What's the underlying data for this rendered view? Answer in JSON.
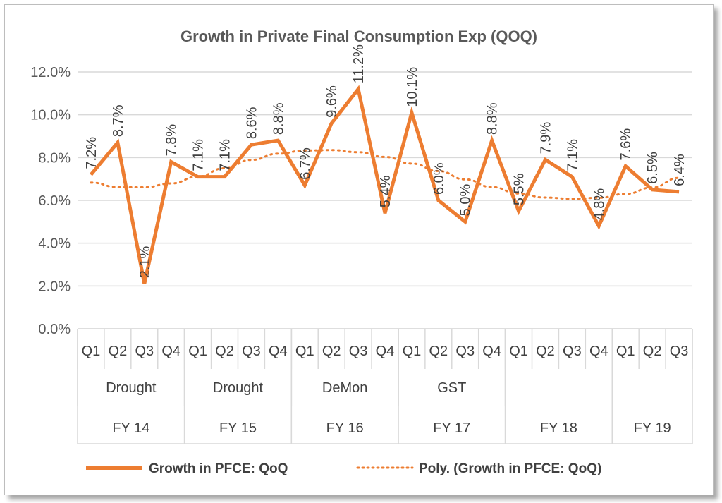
{
  "chart_data": {
    "type": "line",
    "title": "Growth in Private Final Consumption Exp (QOQ)",
    "ylim": [
      0,
      12
    ],
    "yticks": [
      "0.0%",
      "2.0%",
      "4.0%",
      "6.0%",
      "8.0%",
      "10.0%",
      "12.0%"
    ],
    "grid": true,
    "legend_position": "bottom",
    "quarters": [
      "Q1",
      "Q2",
      "Q3",
      "Q4",
      "Q1",
      "Q2",
      "Q3",
      "Q4",
      "Q1",
      "Q2",
      "Q3",
      "Q4",
      "Q1",
      "Q2",
      "Q3",
      "Q4",
      "Q1",
      "Q2",
      "Q3",
      "Q4",
      "Q1",
      "Q2",
      "Q3"
    ],
    "events": [
      {
        "label": "Drought",
        "start": 0,
        "end": 3
      },
      {
        "label": "Drought",
        "start": 4,
        "end": 7
      },
      {
        "label": "DeMon",
        "start": 8,
        "end": 11
      },
      {
        "label": "GST",
        "start": 12,
        "end": 15
      }
    ],
    "fiscal_years": [
      {
        "label": "FY 14",
        "start": 0,
        "end": 3
      },
      {
        "label": "FY 15",
        "start": 4,
        "end": 7
      },
      {
        "label": "FY 16",
        "start": 8,
        "end": 11
      },
      {
        "label": "FY 17",
        "start": 12,
        "end": 15
      },
      {
        "label": "FY 18",
        "start": 16,
        "end": 19
      },
      {
        "label": "FY 19",
        "start": 20,
        "end": 22
      }
    ],
    "series": [
      {
        "name": "Growth in PFCE: QoQ",
        "color": "#ED7D31",
        "values": [
          7.2,
          8.7,
          2.1,
          7.8,
          7.1,
          7.1,
          8.6,
          8.8,
          6.7,
          9.6,
          11.2,
          5.4,
          10.1,
          6.0,
          5.0,
          8.8,
          5.5,
          7.9,
          7.1,
          4.8,
          7.6,
          6.5,
          6.4
        ],
        "labels": [
          "7.2%",
          "8.7%",
          "2.1%",
          "7.8%",
          "7.1%",
          "7.1%",
          "8.6%",
          "8.8%",
          "6.7%",
          "9.6%",
          "11.2%",
          "5.4%",
          "10.1%",
          "6.0%",
          "5.0%",
          "8.8%",
          "5.5%",
          "7.9%",
          "7.1%",
          "4.8%",
          "7.6%",
          "6.5%",
          "6.4%"
        ]
      },
      {
        "name": "Poly. (Growth in PFCE: QoQ)",
        "color": "#ED7D31",
        "style": "dotted",
        "values": [
          6.83,
          6.62,
          6.61,
          6.79,
          7.11,
          7.5,
          7.89,
          8.18,
          8.33,
          8.35,
          8.25,
          8.03,
          7.72,
          7.37,
          6.98,
          6.62,
          6.32,
          6.13,
          6.07,
          6.12,
          6.3,
          6.6,
          7.05
        ]
      }
    ]
  }
}
